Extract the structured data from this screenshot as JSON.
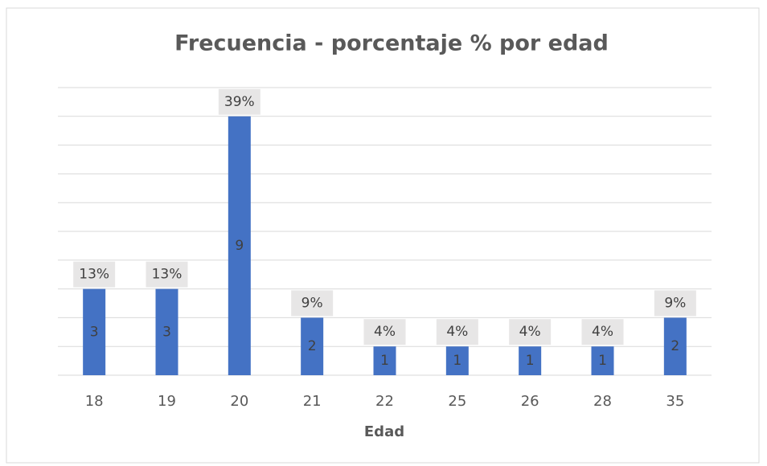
{
  "chart_data": {
    "type": "bar",
    "title": "Frecuencia  - porcentaje % por edad",
    "x_label": "Edad",
    "categories": [
      "18",
      "19",
      "20",
      "21",
      "22",
      "25",
      "26",
      "28",
      "35"
    ],
    "values": [
      3,
      3,
      9,
      2,
      1,
      1,
      1,
      1,
      2
    ],
    "percent_labels": [
      "13%",
      "13%",
      "39%",
      "9%",
      "4%",
      "4%",
      "4%",
      "4%",
      "9%"
    ],
    "color": "#4472c4",
    "ylim": [
      0,
      10
    ],
    "yticks": [
      0,
      1,
      2,
      3,
      4,
      5,
      6,
      7,
      8,
      9,
      10
    ],
    "grid": true
  }
}
